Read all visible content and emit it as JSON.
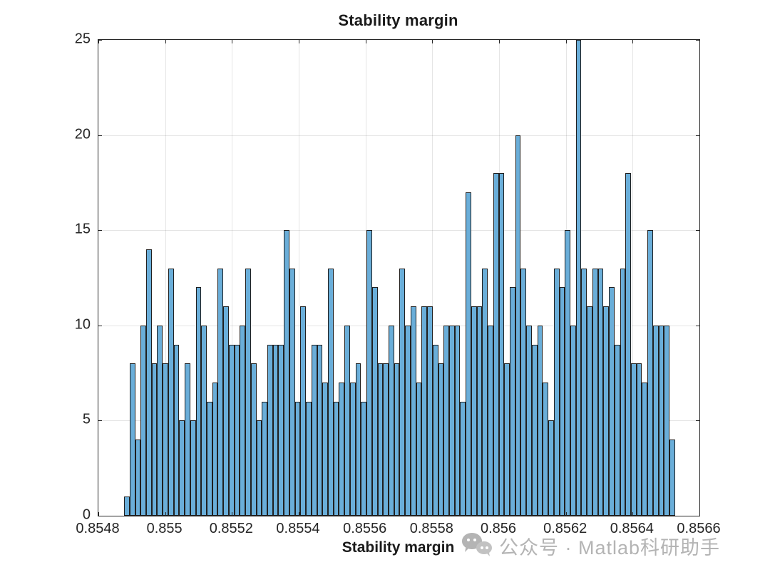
{
  "title": "Stability margin",
  "x_axis_label": "Stability margin",
  "watermark": {
    "icon": "wechat-icon",
    "text": "公众号 · Matlab科研助手",
    "color": "#b4b4b4"
  },
  "chart_data": {
    "type": "bar",
    "subtype": "histogram",
    "title": "Stability margin",
    "xlabel": "Stability margin",
    "ylabel": "",
    "xlim": [
      0.8548,
      0.8566
    ],
    "ylim": [
      0,
      25
    ],
    "grid": true,
    "x_tick_values": [
      0.8548,
      0.855,
      0.8552,
      0.8554,
      0.8556,
      0.8558,
      0.856,
      0.8562,
      0.8564,
      0.8566
    ],
    "x_tick_labels": [
      "0.8548",
      "0.855",
      "0.8552",
      "0.8554",
      "0.8556",
      "0.8558",
      "0.856",
      "0.8562",
      "0.8564",
      "0.8566"
    ],
    "y_tick_values": [
      0,
      5,
      10,
      15,
      20,
      25
    ],
    "y_tick_labels": [
      "0",
      "5",
      "10",
      "15",
      "20",
      "25"
    ],
    "bin_start": 0.854877,
    "bin_width": 1.65e-05,
    "bar_face_color": "#6aaed9",
    "bar_edge_color": "#1f1f1f",
    "counts": [
      1,
      8,
      4,
      10,
      14,
      8,
      10,
      8,
      13,
      9,
      5,
      8,
      5,
      12,
      10,
      6,
      7,
      13,
      11,
      9,
      9,
      10,
      13,
      8,
      5,
      6,
      9,
      9,
      9,
      15,
      13,
      6,
      11,
      6,
      9,
      9,
      7,
      13,
      6,
      7,
      10,
      7,
      8,
      6,
      15,
      12,
      8,
      8,
      10,
      8,
      13,
      10,
      11,
      7,
      11,
      11,
      9,
      8,
      10,
      10,
      10,
      6,
      17,
      11,
      11,
      13,
      10,
      18,
      18,
      8,
      12,
      20,
      13,
      10,
      9,
      10,
      7,
      5,
      13,
      12,
      15,
      10,
      25,
      13,
      11,
      13,
      13,
      11,
      12,
      9,
      13,
      18,
      8,
      8,
      7,
      15,
      10,
      10,
      10,
      4
    ]
  }
}
